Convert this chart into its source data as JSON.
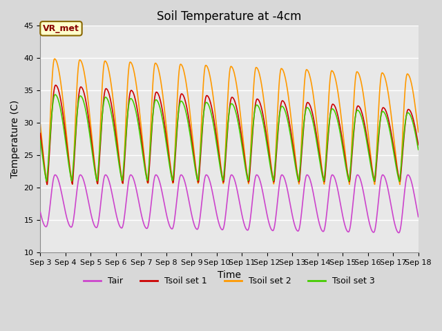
{
  "title": "Soil Temperature at -4cm",
  "xlabel": "Time",
  "ylabel": "Temperature (C)",
  "ylim": [
    10,
    45
  ],
  "xlim_days": [
    3,
    18
  ],
  "xtick_labels": [
    "Sep 3",
    "Sep 4",
    "Sep 5",
    "Sep 6",
    "Sep 7",
    "Sep 8",
    "Sep 9",
    "Sep 10",
    "Sep 11",
    "Sep 12",
    "Sep 13",
    "Sep 14",
    "Sep 15",
    "Sep 16",
    "Sep 17",
    "Sep 18"
  ],
  "colors": {
    "Tair": "#cc44cc",
    "Tsoil1": "#cc0000",
    "Tsoil2": "#ff9900",
    "Tsoil3": "#44cc00"
  },
  "legend_labels": [
    "Tair",
    "Tsoil set 1",
    "Tsoil set 2",
    "Tsoil set 3"
  ],
  "annotation_text": "VR_met",
  "annotation_color_bg": "#ffffcc",
  "annotation_color_border": "#886600",
  "annotation_text_color": "#880000",
  "background_color": "#e8e8e8",
  "grid_color": "#ffffff",
  "title_fontsize": 12,
  "label_fontsize": 10,
  "tick_fontsize": 8
}
